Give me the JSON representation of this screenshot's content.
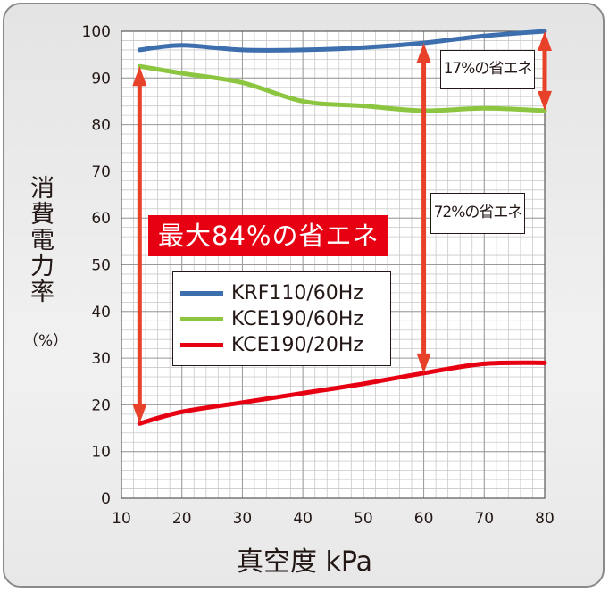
{
  "chart_data": {
    "type": "line",
    "xlabel": "真空度 kPa",
    "ylabel": "消費電力率",
    "yunit": "（%）",
    "xlim": [
      10,
      80
    ],
    "ylim": [
      0,
      100
    ],
    "xticks": [
      10,
      20,
      30,
      40,
      50,
      60,
      70,
      80
    ],
    "yticks": [
      0,
      10,
      20,
      30,
      40,
      50,
      60,
      70,
      80,
      90,
      100
    ],
    "grid": true,
    "legend_position": "center-left",
    "series": [
      {
        "name": "KRF110/60Hz",
        "color": "#3d6fae",
        "x": [
          13,
          20,
          30,
          40,
          50,
          60,
          70,
          80
        ],
        "y": [
          96,
          97,
          96,
          96,
          96.5,
          97.5,
          99,
          100
        ]
      },
      {
        "name": "KCE190/60Hz",
        "color": "#8cc640",
        "x": [
          13,
          20,
          30,
          40,
          50,
          60,
          70,
          80
        ],
        "y": [
          92.5,
          91,
          89,
          85,
          84,
          83,
          83.5,
          83
        ]
      },
      {
        "name": "KCE190/20Hz",
        "color": "#e60012",
        "x": [
          13,
          20,
          30,
          40,
          50,
          60,
          70,
          80
        ],
        "y": [
          16,
          18.5,
          20.5,
          22.5,
          24.5,
          26.8,
          28.8,
          29
        ]
      }
    ],
    "annotations": {
      "max_saving": "最大84%の省エネ",
      "saving_17": "17%の省エネ",
      "saving_72": "72%の省エネ"
    },
    "arrows": [
      {
        "x": 13,
        "y_from": 16,
        "y_to": 92.5
      },
      {
        "x": 60,
        "y_from": 26.8,
        "y_to": 97.5
      },
      {
        "x": 80,
        "y_from": 83,
        "y_to": 100
      }
    ],
    "arrow_color": "#e8412a"
  }
}
